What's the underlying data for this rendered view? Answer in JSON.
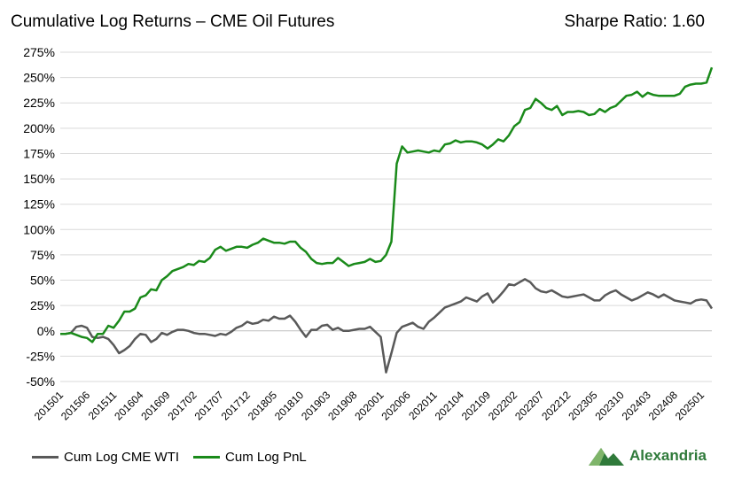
{
  "title": "Cumulative Log Returns – CME Oil Futures",
  "sharpe_label": "Sharpe Ratio: 1.60",
  "legend": {
    "wti_label": "Cum Log CME WTI",
    "pnl_label": "Cum Log PnL"
  },
  "logo_text": "Alexandria",
  "colors": {
    "wti": "#595959",
    "pnl": "#1a8a1a",
    "grid": "#d9d9d9",
    "logo": "#2f7a3a"
  },
  "chart_data": {
    "type": "line",
    "title": "Cumulative Log Returns – CME Oil Futures",
    "xlabel": "",
    "ylabel": "",
    "ylim": [
      -50,
      275
    ],
    "y_ticks": [
      -50,
      -25,
      0,
      25,
      50,
      75,
      100,
      125,
      150,
      175,
      200,
      225,
      250,
      275
    ],
    "y_tick_labels": [
      "-50%",
      "-25%",
      "0%",
      "25%",
      "50%",
      "75%",
      "100%",
      "125%",
      "150%",
      "175%",
      "200%",
      "225%",
      "250%",
      "275%"
    ],
    "x_start": "2015-01",
    "x_end": "2025-03",
    "x_tick_labels": [
      "201501",
      "201506",
      "201511",
      "201604",
      "201609",
      "201702",
      "201707",
      "201712",
      "201805",
      "201810",
      "201903",
      "201908",
      "202001",
      "202006",
      "202011",
      "202104",
      "202109",
      "202202",
      "202207",
      "202212",
      "202305",
      "202310",
      "202403",
      "202408",
      "202501"
    ],
    "grid": true,
    "legend_position": "bottom-left",
    "series": [
      {
        "name": "Cum Log CME WTI",
        "points": [
          [
            "2015-01",
            -3
          ],
          [
            "2015-02",
            -3
          ],
          [
            "2015-03",
            -2
          ],
          [
            "2015-04",
            4
          ],
          [
            "2015-05",
            5
          ],
          [
            "2015-06",
            3
          ],
          [
            "2015-07",
            -6
          ],
          [
            "2015-08",
            -7
          ],
          [
            "2015-09",
            -6
          ],
          [
            "2015-10",
            -8
          ],
          [
            "2015-11",
            -14
          ],
          [
            "2015-12",
            -22
          ],
          [
            "2016-01",
            -19
          ],
          [
            "2016-02",
            -15
          ],
          [
            "2016-03",
            -8
          ],
          [
            "2016-04",
            -3
          ],
          [
            "2016-05",
            -4
          ],
          [
            "2016-06",
            -11
          ],
          [
            "2016-07",
            -8
          ],
          [
            "2016-08",
            -2
          ],
          [
            "2016-09",
            -4
          ],
          [
            "2016-10",
            -1
          ],
          [
            "2016-11",
            1
          ],
          [
            "2016-12",
            1
          ],
          [
            "2017-01",
            0
          ],
          [
            "2017-02",
            -2
          ],
          [
            "2017-03",
            -3
          ],
          [
            "2017-04",
            -3
          ],
          [
            "2017-05",
            -4
          ],
          [
            "2017-06",
            -5
          ],
          [
            "2017-07",
            -3
          ],
          [
            "2017-08",
            -4
          ],
          [
            "2017-09",
            -1
          ],
          [
            "2017-10",
            3
          ],
          [
            "2017-11",
            5
          ],
          [
            "2017-12",
            9
          ],
          [
            "2018-01",
            7
          ],
          [
            "2018-02",
            8
          ],
          [
            "2018-03",
            11
          ],
          [
            "2018-04",
            10
          ],
          [
            "2018-05",
            14
          ],
          [
            "2018-06",
            12
          ],
          [
            "2018-07",
            12
          ],
          [
            "2018-08",
            15
          ],
          [
            "2018-09",
            9
          ],
          [
            "2018-10",
            1
          ],
          [
            "2018-11",
            -6
          ],
          [
            "2018-12",
            1
          ],
          [
            "2019-01",
            1
          ],
          [
            "2019-02",
            5
          ],
          [
            "2019-03",
            6
          ],
          [
            "2019-04",
            1
          ],
          [
            "2019-05",
            3
          ],
          [
            "2019-06",
            0
          ],
          [
            "2019-07",
            0
          ],
          [
            "2019-08",
            1
          ],
          [
            "2019-09",
            2
          ],
          [
            "2019-10",
            2
          ],
          [
            "2019-11",
            4
          ],
          [
            "2019-12",
            -1
          ],
          [
            "2020-01",
            -6
          ],
          [
            "2020-02",
            -41
          ],
          [
            "2020-03",
            -22
          ],
          [
            "2020-04",
            -2
          ],
          [
            "2020-05",
            4
          ],
          [
            "2020-06",
            6
          ],
          [
            "2020-07",
            8
          ],
          [
            "2020-08",
            4
          ],
          [
            "2020-09",
            2
          ],
          [
            "2020-10",
            9
          ],
          [
            "2020-11",
            13
          ],
          [
            "2020-12",
            18
          ],
          [
            "2021-01",
            23
          ],
          [
            "2021-02",
            25
          ],
          [
            "2021-03",
            27
          ],
          [
            "2021-04",
            29
          ],
          [
            "2021-05",
            33
          ],
          [
            "2021-06",
            31
          ],
          [
            "2021-07",
            29
          ],
          [
            "2021-08",
            34
          ],
          [
            "2021-09",
            37
          ],
          [
            "2021-10",
            28
          ],
          [
            "2021-11",
            33
          ],
          [
            "2021-12",
            39
          ],
          [
            "2022-01",
            46
          ],
          [
            "2022-02",
            45
          ],
          [
            "2022-03",
            48
          ],
          [
            "2022-04",
            51
          ],
          [
            "2022-05",
            48
          ],
          [
            "2022-06",
            42
          ],
          [
            "2022-07",
            39
          ],
          [
            "2022-08",
            38
          ],
          [
            "2022-09",
            40
          ],
          [
            "2022-10",
            37
          ],
          [
            "2022-11",
            34
          ],
          [
            "2022-12",
            33
          ],
          [
            "2023-01",
            34
          ],
          [
            "2023-02",
            35
          ],
          [
            "2023-03",
            36
          ],
          [
            "2023-04",
            33
          ],
          [
            "2023-05",
            30
          ],
          [
            "2023-06",
            30
          ],
          [
            "2023-07",
            35
          ],
          [
            "2023-08",
            38
          ],
          [
            "2023-09",
            40
          ],
          [
            "2023-10",
            36
          ],
          [
            "2023-11",
            33
          ],
          [
            "2023-12",
            30
          ],
          [
            "2024-01",
            32
          ],
          [
            "2024-02",
            35
          ],
          [
            "2024-03",
            38
          ],
          [
            "2024-04",
            36
          ],
          [
            "2024-05",
            33
          ],
          [
            "2024-06",
            36
          ],
          [
            "2024-07",
            33
          ],
          [
            "2024-08",
            30
          ],
          [
            "2024-09",
            29
          ],
          [
            "2024-10",
            28
          ],
          [
            "2024-11",
            27
          ],
          [
            "2024-12",
            30
          ],
          [
            "2025-01",
            31
          ],
          [
            "2025-02",
            30
          ],
          [
            "2025-03",
            22
          ]
        ]
      },
      {
        "name": "Cum Log PnL",
        "points": [
          [
            "2015-01",
            -3
          ],
          [
            "2015-02",
            -3
          ],
          [
            "2015-03",
            -2
          ],
          [
            "2015-04",
            -4
          ],
          [
            "2015-05",
            -6
          ],
          [
            "2015-06",
            -7
          ],
          [
            "2015-07",
            -11
          ],
          [
            "2015-08",
            -3
          ],
          [
            "2015-09",
            -3
          ],
          [
            "2015-10",
            5
          ],
          [
            "2015-11",
            3
          ],
          [
            "2015-12",
            10
          ],
          [
            "2016-01",
            19
          ],
          [
            "2016-02",
            19
          ],
          [
            "2016-03",
            22
          ],
          [
            "2016-04",
            33
          ],
          [
            "2016-05",
            35
          ],
          [
            "2016-06",
            41
          ],
          [
            "2016-07",
            40
          ],
          [
            "2016-08",
            50
          ],
          [
            "2016-09",
            54
          ],
          [
            "2016-10",
            59
          ],
          [
            "2016-11",
            61
          ],
          [
            "2016-12",
            63
          ],
          [
            "2017-01",
            66
          ],
          [
            "2017-02",
            65
          ],
          [
            "2017-03",
            69
          ],
          [
            "2017-04",
            68
          ],
          [
            "2017-05",
            72
          ],
          [
            "2017-06",
            80
          ],
          [
            "2017-07",
            83
          ],
          [
            "2017-08",
            79
          ],
          [
            "2017-09",
            81
          ],
          [
            "2017-10",
            83
          ],
          [
            "2017-11",
            83
          ],
          [
            "2017-12",
            82
          ],
          [
            "2018-01",
            85
          ],
          [
            "2018-02",
            87
          ],
          [
            "2018-03",
            91
          ],
          [
            "2018-04",
            89
          ],
          [
            "2018-05",
            87
          ],
          [
            "2018-06",
            87
          ],
          [
            "2018-07",
            86
          ],
          [
            "2018-08",
            88
          ],
          [
            "2018-09",
            88
          ],
          [
            "2018-10",
            82
          ],
          [
            "2018-11",
            78
          ],
          [
            "2018-12",
            71
          ],
          [
            "2019-01",
            67
          ],
          [
            "2019-02",
            66
          ],
          [
            "2019-03",
            67
          ],
          [
            "2019-04",
            67
          ],
          [
            "2019-05",
            72
          ],
          [
            "2019-06",
            68
          ],
          [
            "2019-07",
            64
          ],
          [
            "2019-08",
            66
          ],
          [
            "2019-09",
            67
          ],
          [
            "2019-10",
            68
          ],
          [
            "2019-11",
            71
          ],
          [
            "2019-12",
            68
          ],
          [
            "2020-01",
            69
          ],
          [
            "2020-02",
            75
          ],
          [
            "2020-03",
            88
          ],
          [
            "2020-04",
            165
          ],
          [
            "2020-05",
            182
          ],
          [
            "2020-06",
            176
          ],
          [
            "2020-07",
            177
          ],
          [
            "2020-08",
            178
          ],
          [
            "2020-09",
            177
          ],
          [
            "2020-10",
            176
          ],
          [
            "2020-11",
            178
          ],
          [
            "2020-12",
            177
          ],
          [
            "2021-01",
            184
          ],
          [
            "2021-02",
            185
          ],
          [
            "2021-03",
            188
          ],
          [
            "2021-04",
            186
          ],
          [
            "2021-05",
            187
          ],
          [
            "2021-06",
            187
          ],
          [
            "2021-07",
            186
          ],
          [
            "2021-08",
            184
          ],
          [
            "2021-09",
            180
          ],
          [
            "2021-10",
            184
          ],
          [
            "2021-11",
            189
          ],
          [
            "2021-12",
            187
          ],
          [
            "2022-01",
            193
          ],
          [
            "2022-02",
            202
          ],
          [
            "2022-03",
            206
          ],
          [
            "2022-04",
            218
          ],
          [
            "2022-05",
            220
          ],
          [
            "2022-06",
            229
          ],
          [
            "2022-07",
            225
          ],
          [
            "2022-08",
            220
          ],
          [
            "2022-09",
            218
          ],
          [
            "2022-10",
            222
          ],
          [
            "2022-11",
            213
          ],
          [
            "2022-12",
            216
          ],
          [
            "2023-01",
            216
          ],
          [
            "2023-02",
            217
          ],
          [
            "2023-03",
            216
          ],
          [
            "2023-04",
            213
          ],
          [
            "2023-05",
            214
          ],
          [
            "2023-06",
            219
          ],
          [
            "2023-07",
            216
          ],
          [
            "2023-08",
            220
          ],
          [
            "2023-09",
            222
          ],
          [
            "2023-10",
            227
          ],
          [
            "2023-11",
            232
          ],
          [
            "2023-12",
            233
          ],
          [
            "2024-01",
            236
          ],
          [
            "2024-02",
            231
          ],
          [
            "2024-03",
            235
          ],
          [
            "2024-04",
            233
          ],
          [
            "2024-05",
            232
          ],
          [
            "2024-06",
            232
          ],
          [
            "2024-07",
            232
          ],
          [
            "2024-08",
            232
          ],
          [
            "2024-09",
            234
          ],
          [
            "2024-10",
            241
          ],
          [
            "2024-11",
            243
          ],
          [
            "2024-12",
            244
          ],
          [
            "2025-01",
            244
          ],
          [
            "2025-02",
            245
          ],
          [
            "2025-03",
            260
          ]
        ]
      }
    ]
  }
}
